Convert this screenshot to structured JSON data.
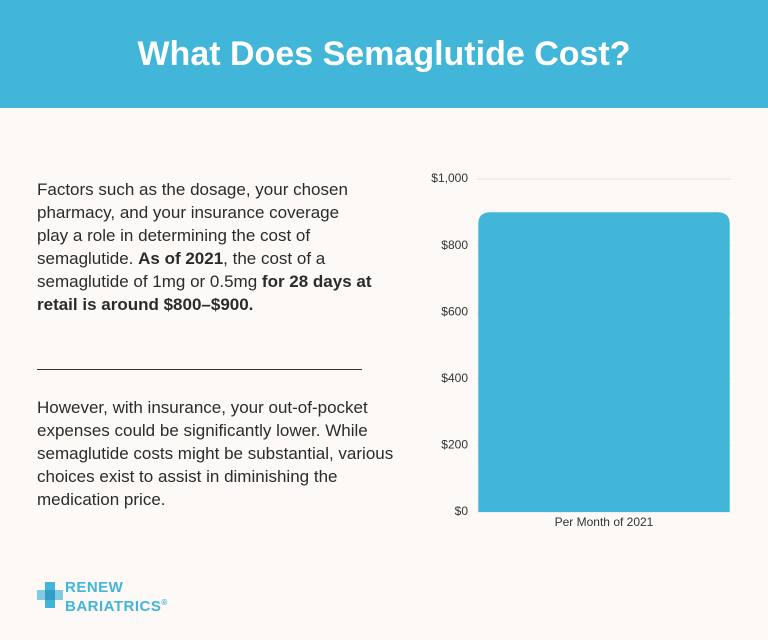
{
  "header": {
    "title": "What Does Semaglutide Cost?"
  },
  "paragraphs": [
    {
      "segments": [
        {
          "text": "Factors such as the dosage, your chosen pharmacy, and your insurance coverage play a role in determining the cost of semaglutide. ",
          "bold": false
        },
        {
          "text": "As of 2021",
          "bold": true
        },
        {
          "text": ", the cost of a semaglutide of 1mg or 0.5mg ",
          "bold": false
        },
        {
          "text": "for 28 days at retail is around $800–$900.",
          "bold": true
        }
      ]
    },
    {
      "segments": [
        {
          "text": "However, with insurance, your out-of-pocket expenses could be significantly lower. While semaglutide costs might be substantial, various choices exist to assist in diminishing the medication price.",
          "bold": false
        }
      ]
    }
  ],
  "logo": {
    "line1": "RENEW",
    "line2": "BARIATRICS",
    "mark": "®"
  },
  "chart_data": {
    "type": "bar",
    "categories": [
      "Per Month of 2021"
    ],
    "values": [
      900
    ],
    "color": "#41b6d8",
    "ylim": [
      0,
      1000
    ],
    "yticks": [
      {
        "value": 0,
        "label": "$0"
      },
      {
        "value": 200,
        "label": "$200"
      },
      {
        "value": 400,
        "label": "$400"
      },
      {
        "value": 600,
        "label": "$600"
      },
      {
        "value": 800,
        "label": "$800"
      },
      {
        "value": 1000,
        "label": "$1,000"
      }
    ],
    "grid": true
  }
}
